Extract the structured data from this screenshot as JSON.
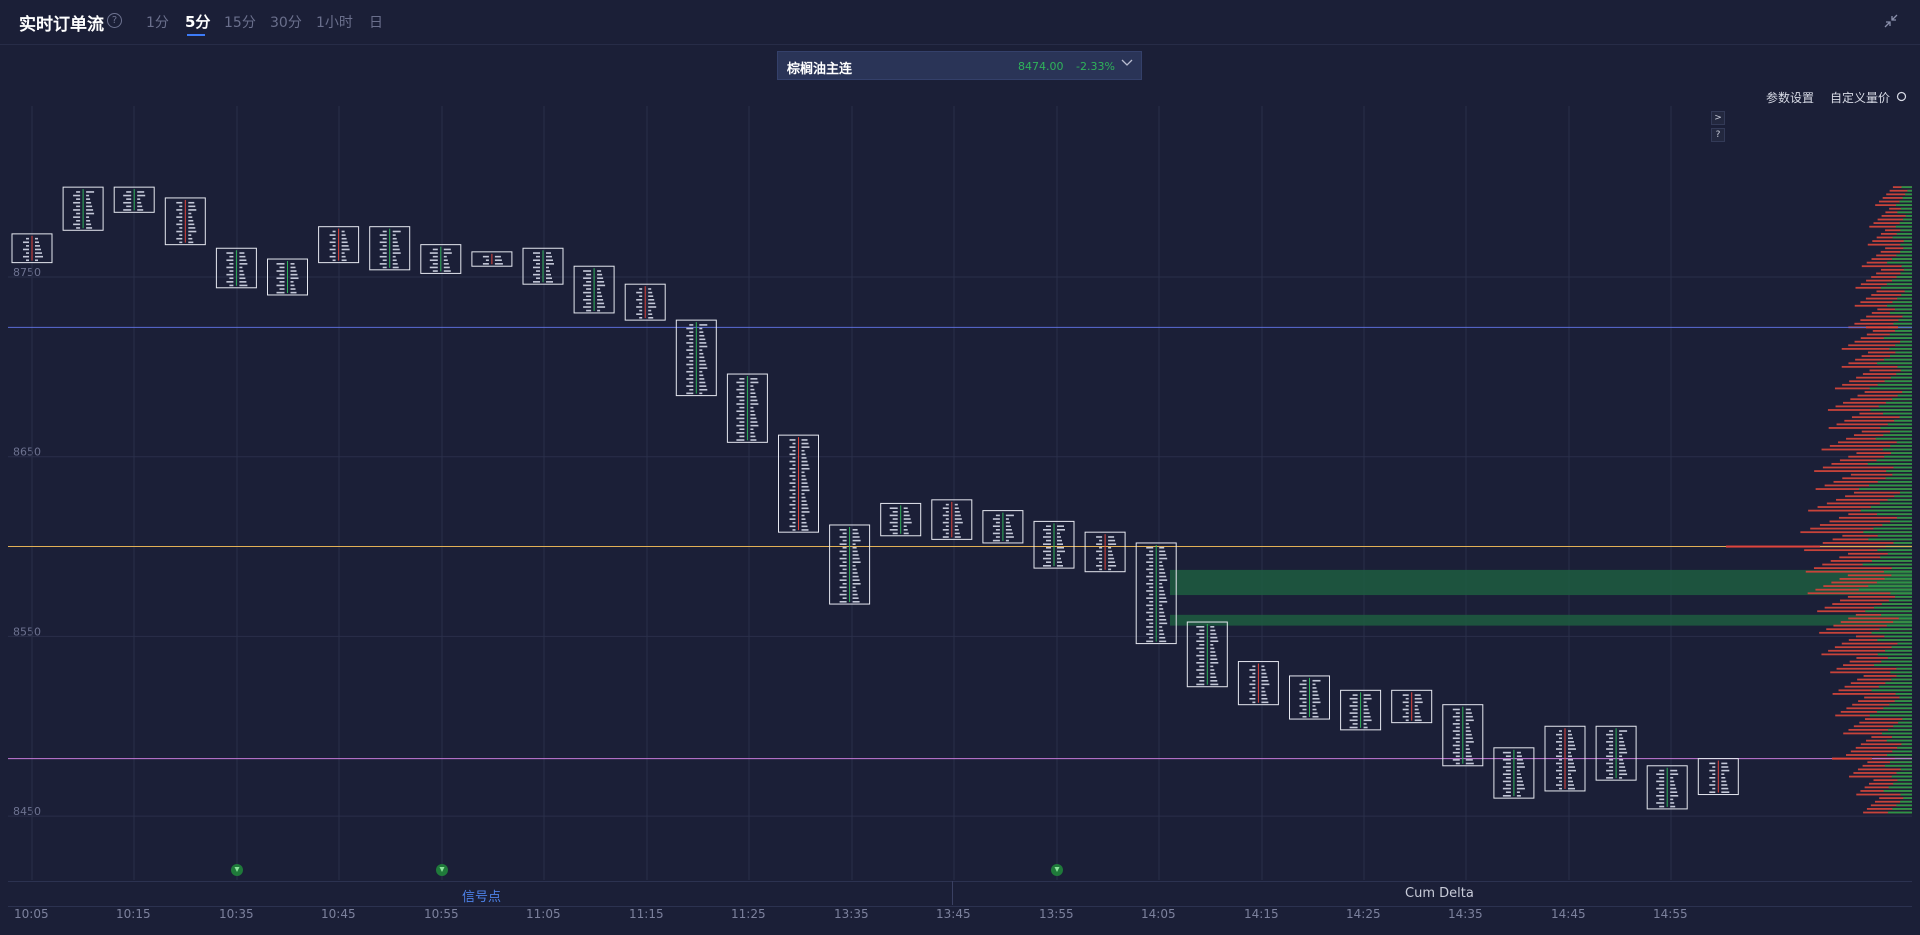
{
  "header": {
    "title": "实时订单流",
    "help": "?",
    "tabs": [
      {
        "label": "1分",
        "active": false
      },
      {
        "label": "5分",
        "active": true
      },
      {
        "label": "15分",
        "active": false
      },
      {
        "label": "30分",
        "active": false
      },
      {
        "label": "1小时",
        "active": false
      },
      {
        "label": "日",
        "active": false
      }
    ]
  },
  "symbol": {
    "name": "棕榈油主连",
    "price": "8474.00",
    "change": "-2.33%"
  },
  "toolbar": {
    "settings_label": "参数设置",
    "custom_volume_label": "自定义量价"
  },
  "side_buttons": [
    ">",
    "?"
  ],
  "footer": {
    "signal_label": "信号点",
    "cum_delta_label": "Cum Delta"
  },
  "colors": {
    "background": "#1b1f37",
    "up": "#2fb35a",
    "down": "#e0453c",
    "blue_line": "#5b6dd6",
    "orange_line": "#e2b056",
    "purple_line": "#c77ad8",
    "accent": "#3d7bf7"
  },
  "chart_data": {
    "type": "footprint",
    "y_ticks": [
      8750,
      8650,
      8550,
      8450
    ],
    "ylim": [
      8436,
      8840
    ],
    "x_ticks": [
      "10:05",
      "10:15",
      "10:35",
      "10:45",
      "10:55",
      "11:05",
      "11:15",
      "11:25",
      "13:35",
      "13:45",
      "13:55",
      "14:05",
      "14:15",
      "14:25",
      "14:35",
      "14:45",
      "14:55"
    ],
    "bars": [
      {
        "high": 8774,
        "low": 8758
      },
      {
        "high": 8800,
        "low": 8776
      },
      {
        "high": 8800,
        "low": 8786
      },
      {
        "high": 8794,
        "low": 8768
      },
      {
        "high": 8766,
        "low": 8744
      },
      {
        "high": 8760,
        "low": 8740
      },
      {
        "high": 8778,
        "low": 8758
      },
      {
        "high": 8778,
        "low": 8754
      },
      {
        "high": 8768,
        "low": 8752
      },
      {
        "high": 8764,
        "low": 8756
      },
      {
        "high": 8766,
        "low": 8746
      },
      {
        "high": 8756,
        "low": 8730
      },
      {
        "high": 8746,
        "low": 8726
      },
      {
        "high": 8726,
        "low": 8684
      },
      {
        "high": 8696,
        "low": 8658
      },
      {
        "high": 8662,
        "low": 8608
      },
      {
        "high": 8612,
        "low": 8568
      },
      {
        "high": 8624,
        "low": 8606
      },
      {
        "high": 8626,
        "low": 8604
      },
      {
        "high": 8620,
        "low": 8602
      },
      {
        "high": 8614,
        "low": 8588
      },
      {
        "high": 8608,
        "low": 8586
      },
      {
        "high": 8602,
        "low": 8546
      },
      {
        "high": 8558,
        "low": 8522
      },
      {
        "high": 8536,
        "low": 8512
      },
      {
        "high": 8528,
        "low": 8504
      },
      {
        "high": 8520,
        "low": 8498
      },
      {
        "high": 8520,
        "low": 8502
      },
      {
        "high": 8512,
        "low": 8478
      },
      {
        "high": 8488,
        "low": 8460
      },
      {
        "high": 8500,
        "low": 8464
      },
      {
        "high": 8500,
        "low": 8470
      },
      {
        "high": 8478,
        "low": 8454
      },
      {
        "high": 8482,
        "low": 8462
      }
    ],
    "levels": [
      {
        "price": 8722,
        "color": "#5b6dd6"
      },
      {
        "price": 8600,
        "color": "#e2b056"
      },
      {
        "price": 8482,
        "color": "#c77ad8"
      }
    ],
    "zones": [
      {
        "high": 8587,
        "low": 8573
      },
      {
        "high": 8562,
        "low": 8556
      }
    ],
    "signals": [
      "10:35",
      "10:55",
      "13:55"
    ],
    "volume_profile": {
      "high": 8800,
      "low": 8452
    }
  }
}
